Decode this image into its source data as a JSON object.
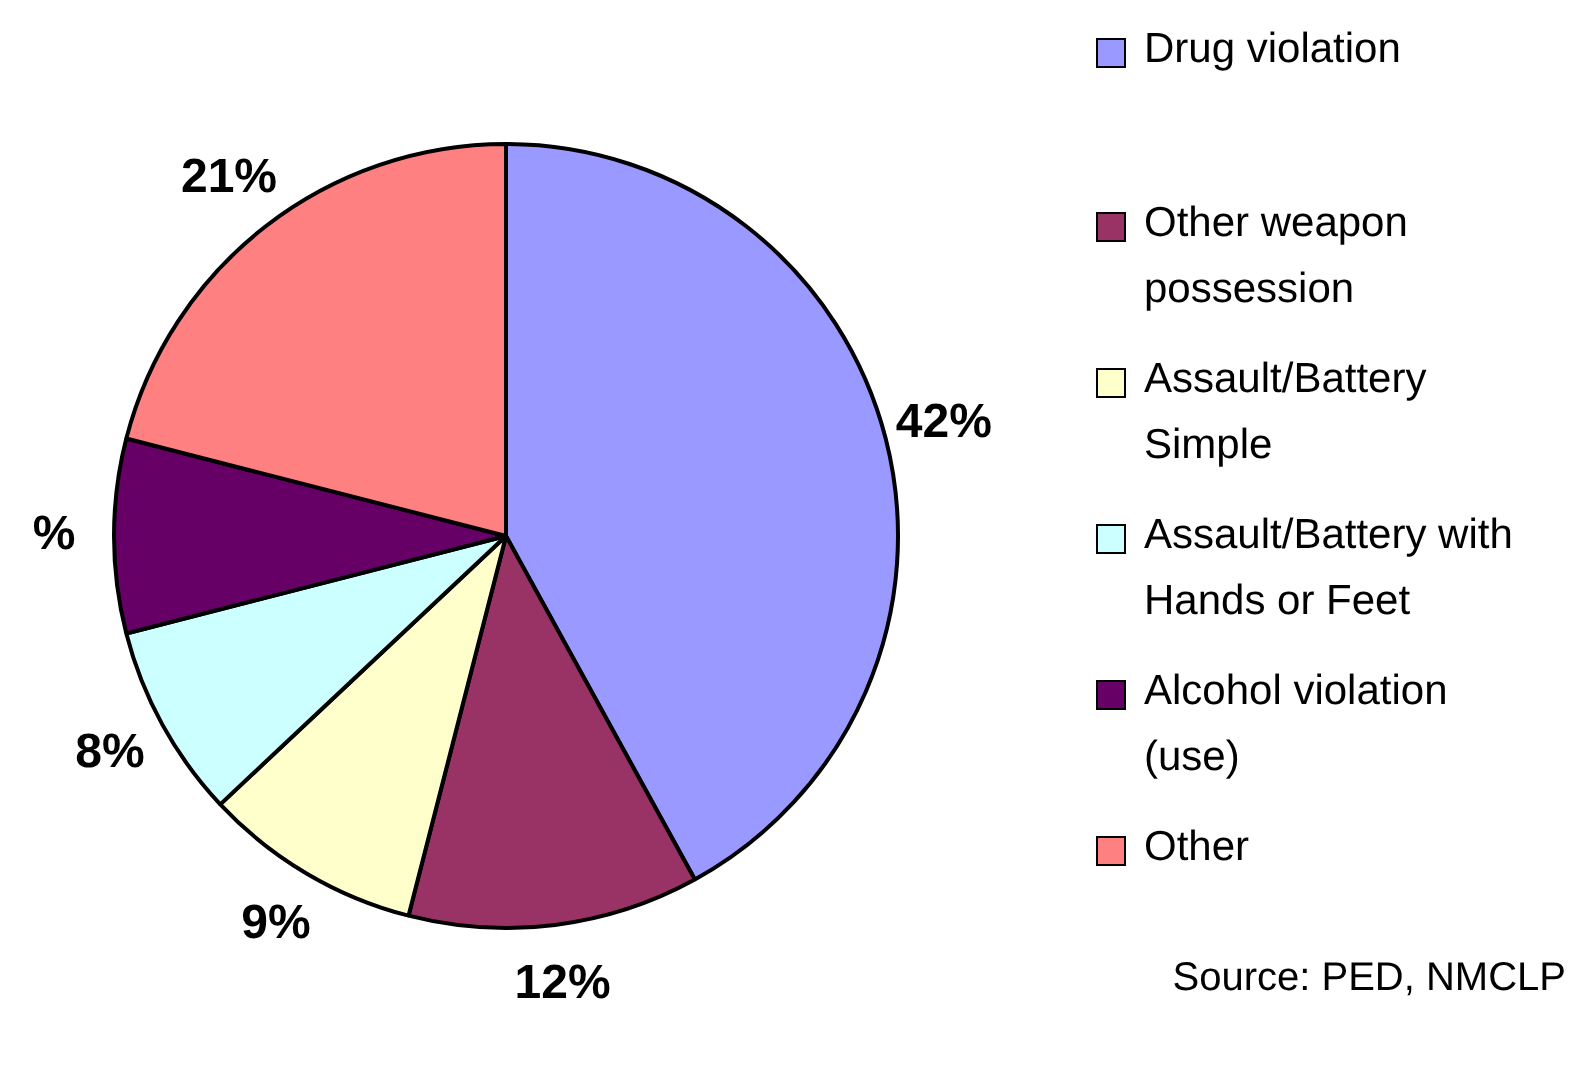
{
  "chart_data": {
    "type": "pie",
    "categories": [
      "Drug violation",
      "Other weapon possession",
      "Assault/Battery Simple",
      "Assault/Battery with Hands or Feet",
      "Alcohol violation (use)",
      "Other"
    ],
    "values": [
      42,
      12,
      9,
      8,
      8,
      21
    ],
    "colors": [
      "#9999ff",
      "#993366",
      "#ffffcc",
      "#ccffff",
      "#660066",
      "#ff8080"
    ],
    "value_labels": [
      "42%",
      "12%",
      "9%",
      "8%",
      "%",
      "21%"
    ],
    "legend": "right",
    "annotations": [
      "Source: PED, NMCLP"
    ]
  }
}
